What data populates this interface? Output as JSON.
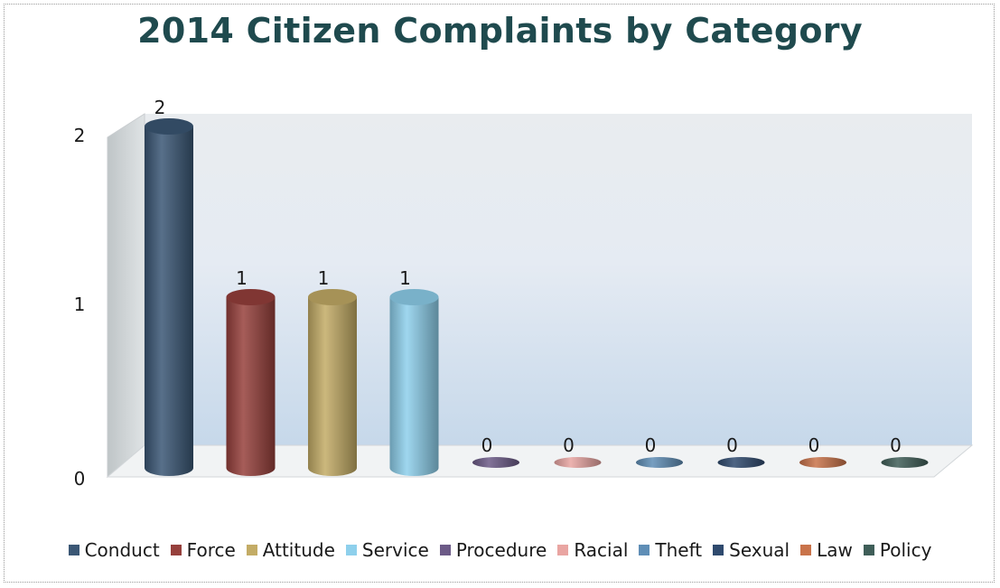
{
  "chart_data": {
    "type": "bar",
    "title": "2014 Citizen Complaints by Category",
    "categories": [
      "Conduct",
      "Force",
      "Attitude",
      "Service",
      "Procedure",
      "Racial",
      "Theft",
      "Sexual",
      "Law",
      "Policy"
    ],
    "values": [
      2,
      1,
      1,
      1,
      0,
      0,
      0,
      0,
      0,
      0
    ],
    "colors": [
      "#3b5775",
      "#96403c",
      "#c3ac66",
      "#8ed0ec",
      "#6c5a87",
      "#e9a5a2",
      "#5f8eb6",
      "#2f4a6e",
      "#c9734a",
      "#3f5e58"
    ],
    "ylim": [
      0,
      2
    ],
    "yticks": [
      0,
      1,
      2
    ],
    "xlabel": "",
    "ylabel": "",
    "legend": "bottom",
    "grid": false
  }
}
